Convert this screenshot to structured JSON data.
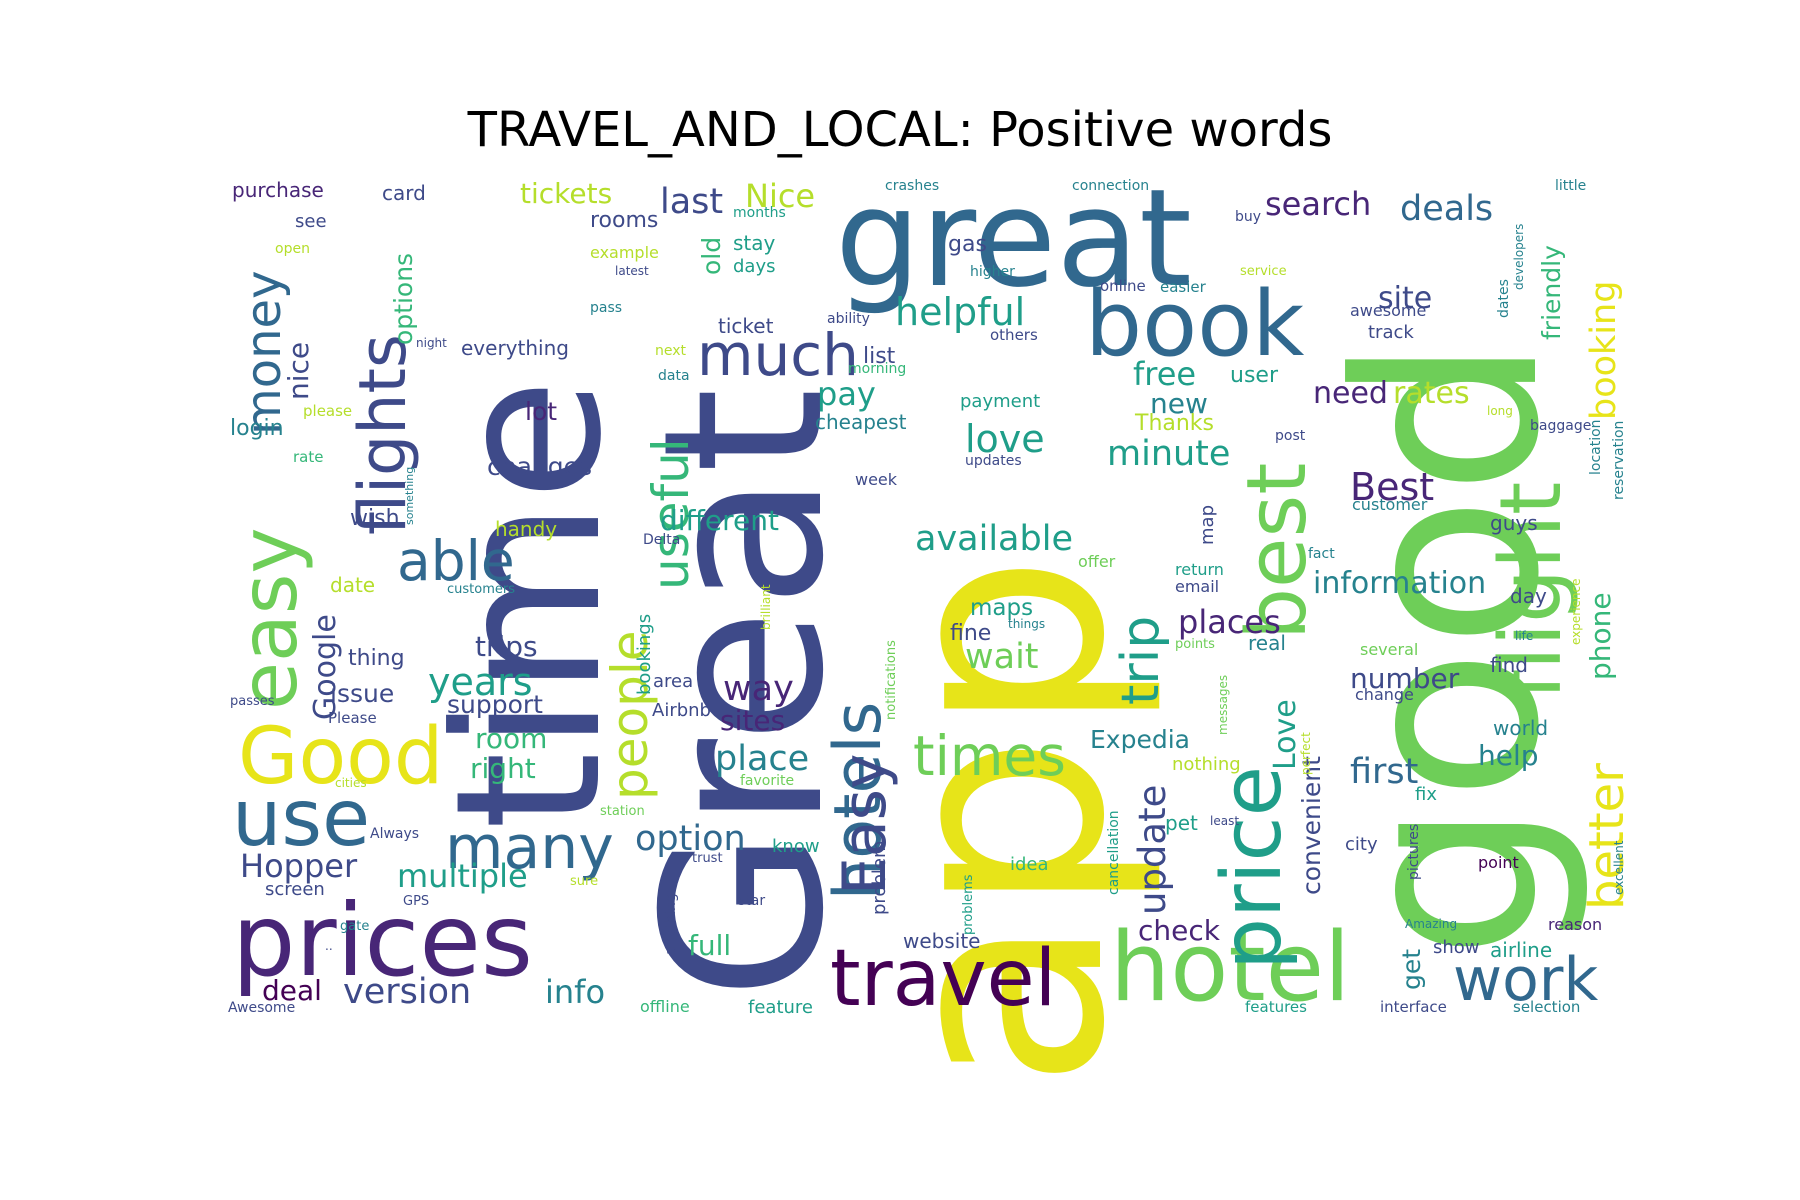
{
  "title": "TRAVEL_AND_LOCAL: Positive words",
  "palette": {
    "dark_purple": "#440154",
    "purple": "#482677",
    "indigo": "#3e4a89",
    "blue": "#31688e",
    "teal": "#26828e",
    "green_teal": "#1f9e89",
    "green": "#35b779",
    "light_green": "#6ece58",
    "lime": "#b5de2b",
    "yellow": "#e7e419"
  },
  "words": [
    {
      "text": "app",
      "color": "yellow"
    },
    {
      "text": "good",
      "color": "light_green"
    },
    {
      "text": "Great",
      "color": "indigo"
    },
    {
      "text": "time",
      "color": "indigo"
    },
    {
      "text": "great",
      "color": "blue"
    },
    {
      "text": "hotel",
      "color": "light_green"
    },
    {
      "text": "book",
      "color": "blue"
    },
    {
      "text": "flight",
      "color": "light_green"
    },
    {
      "text": "price",
      "color": "green_teal"
    },
    {
      "text": "best",
      "color": "light_green"
    },
    {
      "text": "prices",
      "color": "purple"
    },
    {
      "text": "travel",
      "color": "dark_purple"
    },
    {
      "text": "hotels",
      "color": "blue"
    },
    {
      "text": "easy",
      "color": "light_green"
    },
    {
      "text": "flights",
      "color": "indigo"
    },
    {
      "text": "Good",
      "color": "yellow"
    },
    {
      "text": "use",
      "color": "blue"
    },
    {
      "text": "useful",
      "color": "green"
    },
    {
      "text": "people",
      "color": "lime"
    },
    {
      "text": "Easy",
      "color": "indigo"
    },
    {
      "text": "much",
      "color": "indigo"
    },
    {
      "text": "many",
      "color": "blue"
    },
    {
      "text": "work",
      "color": "blue"
    },
    {
      "text": "times",
      "color": "light_green"
    },
    {
      "text": "able",
      "color": "blue"
    },
    {
      "text": "money",
      "color": "blue"
    },
    {
      "text": "trip",
      "color": "green_teal"
    },
    {
      "text": "better",
      "color": "yellow"
    },
    {
      "text": "booking",
      "color": "yellow"
    },
    {
      "text": "update",
      "color": "indigo"
    },
    {
      "text": "Best",
      "color": "purple"
    },
    {
      "text": "helpful",
      "color": "green_teal"
    },
    {
      "text": "love",
      "color": "green_teal"
    },
    {
      "text": "Love",
      "color": "green_teal"
    },
    {
      "text": "available",
      "color": "green_teal"
    },
    {
      "text": "deals",
      "color": "blue"
    },
    {
      "text": "search",
      "color": "purple"
    },
    {
      "text": "wait",
      "color": "light_green"
    },
    {
      "text": "years",
      "color": "green_teal"
    },
    {
      "text": "option",
      "color": "blue"
    },
    {
      "text": "place",
      "color": "teal"
    },
    {
      "text": "way",
      "color": "purple"
    },
    {
      "text": "information",
      "color": "teal"
    },
    {
      "text": "first",
      "color": "blue"
    },
    {
      "text": "version",
      "color": "indigo"
    },
    {
      "text": "Hopper",
      "color": "indigo"
    },
    {
      "text": "multiple",
      "color": "green_teal"
    },
    {
      "text": "minute",
      "color": "green_teal"
    },
    {
      "text": "last",
      "color": "indigo"
    },
    {
      "text": "Nice",
      "color": "lime"
    },
    {
      "text": "tickets",
      "color": "lime"
    },
    {
      "text": "different",
      "color": "green_teal"
    },
    {
      "text": "free",
      "color": "green_teal"
    },
    {
      "text": "pay",
      "color": "green_teal"
    },
    {
      "text": "Google",
      "color": "indigo"
    },
    {
      "text": "nice",
      "color": "indigo"
    },
    {
      "text": "options",
      "color": "green"
    },
    {
      "text": "info",
      "color": "teal"
    },
    {
      "text": "check",
      "color": "purple"
    },
    {
      "text": "convenient",
      "color": "indigo"
    },
    {
      "text": "phone",
      "color": "green"
    },
    {
      "text": "friendly",
      "color": "green"
    },
    {
      "text": "need",
      "color": "purple"
    },
    {
      "text": "rates",
      "color": "lime"
    },
    {
      "text": "site",
      "color": "indigo"
    },
    {
      "text": "places",
      "color": "purple"
    },
    {
      "text": "number",
      "color": "indigo"
    },
    {
      "text": "deal",
      "color": "dark_purple"
    },
    {
      "text": "full",
      "color": "green"
    },
    {
      "text": "new",
      "color": "teal"
    },
    {
      "text": "trips",
      "color": "indigo"
    },
    {
      "text": "room",
      "color": "green"
    },
    {
      "text": "right",
      "color": "green"
    },
    {
      "text": "help",
      "color": "teal"
    },
    {
      "text": "Expedia",
      "color": "teal"
    },
    {
      "text": "sites",
      "color": "purple"
    },
    {
      "text": "changes",
      "color": "indigo"
    },
    {
      "text": "lot",
      "color": "purple"
    },
    {
      "text": "issue",
      "color": "indigo"
    },
    {
      "text": "support",
      "color": "indigo"
    },
    {
      "text": "thing",
      "color": "indigo"
    },
    {
      "text": "wish",
      "color": "indigo"
    },
    {
      "text": "login",
      "color": "teal"
    },
    {
      "text": "get",
      "color": "teal"
    },
    {
      "text": "maps",
      "color": "green_teal"
    },
    {
      "text": "fine",
      "color": "indigo"
    },
    {
      "text": "gas",
      "color": "indigo"
    },
    {
      "text": "list",
      "color": "indigo"
    },
    {
      "text": "cheapest",
      "color": "teal"
    },
    {
      "text": "Thanks",
      "color": "lime"
    },
    {
      "text": "user",
      "color": "green_teal"
    },
    {
      "text": "rooms",
      "color": "indigo"
    },
    {
      "text": "old",
      "color": "green"
    },
    {
      "text": "stay",
      "color": "green_teal"
    },
    {
      "text": "days",
      "color": "green_teal"
    },
    {
      "text": "ticket",
      "color": "indigo"
    },
    {
      "text": "everything",
      "color": "indigo"
    },
    {
      "text": "handy",
      "color": "lime"
    },
    {
      "text": "date",
      "color": "lime"
    },
    {
      "text": "card",
      "color": "indigo"
    },
    {
      "text": "purchase",
      "color": "purple"
    },
    {
      "text": "see",
      "color": "indigo"
    },
    {
      "text": "screen",
      "color": "indigo"
    },
    {
      "text": "website",
      "color": "indigo"
    },
    {
      "text": "day",
      "color": "indigo"
    },
    {
      "text": "world",
      "color": "teal"
    },
    {
      "text": "find",
      "color": "indigo"
    },
    {
      "text": "guys",
      "color": "indigo"
    },
    {
      "text": "real",
      "color": "teal"
    },
    {
      "text": "airline",
      "color": "green_teal"
    },
    {
      "text": "show",
      "color": "indigo"
    },
    {
      "text": "reason",
      "color": "purple"
    },
    {
      "text": "offline",
      "color": "green"
    },
    {
      "text": "feature",
      "color": "green_teal"
    },
    {
      "text": "Awesome",
      "color": "indigo"
    },
    {
      "text": "features",
      "color": "green_teal"
    },
    {
      "text": "interface",
      "color": "indigo"
    },
    {
      "text": "selection",
      "color": "teal"
    },
    {
      "text": "bookings",
      "color": "green_teal"
    },
    {
      "text": "Airbnb",
      "color": "indigo"
    },
    {
      "text": "area",
      "color": "indigo"
    },
    {
      "text": "problem",
      "color": "indigo"
    },
    {
      "text": "know",
      "color": "green_teal"
    },
    {
      "text": "idea",
      "color": "green"
    },
    {
      "text": "customer",
      "color": "teal"
    },
    {
      "text": "awesome",
      "color": "indigo"
    },
    {
      "text": "track",
      "color": "indigo"
    },
    {
      "text": "map",
      "color": "indigo"
    },
    {
      "text": "email",
      "color": "indigo"
    },
    {
      "text": "return",
      "color": "green_teal"
    },
    {
      "text": "offer",
      "color": "light_green"
    },
    {
      "text": "fix",
      "color": "green_teal"
    },
    {
      "text": "pet",
      "color": "green_teal"
    },
    {
      "text": "city",
      "color": "indigo"
    },
    {
      "text": "point",
      "color": "dark_purple"
    },
    {
      "text": "change",
      "color": "indigo"
    },
    {
      "text": "several",
      "color": "light_green"
    },
    {
      "text": "nothing",
      "color": "lime"
    },
    {
      "text": "Delta",
      "color": "indigo"
    },
    {
      "text": "payment",
      "color": "green_teal"
    },
    {
      "text": "updates",
      "color": "indigo"
    },
    {
      "text": "week",
      "color": "indigo"
    },
    {
      "text": "morning",
      "color": "green"
    },
    {
      "text": "ability",
      "color": "indigo"
    },
    {
      "text": "next",
      "color": "lime"
    },
    {
      "text": "data",
      "color": "teal"
    },
    {
      "text": "example",
      "color": "lime"
    },
    {
      "text": "latest",
      "color": "indigo"
    },
    {
      "text": "pass",
      "color": "teal"
    },
    {
      "text": "months",
      "color": "green_teal"
    },
    {
      "text": "crashes",
      "color": "teal"
    },
    {
      "text": "connection",
      "color": "teal"
    },
    {
      "text": "little",
      "color": "teal"
    },
    {
      "text": "buy",
      "color": "indigo"
    },
    {
      "text": "developers",
      "color": "teal"
    },
    {
      "text": "service",
      "color": "lime"
    },
    {
      "text": "online",
      "color": "indigo"
    },
    {
      "text": "easier",
      "color": "teal"
    },
    {
      "text": "higher",
      "color": "teal"
    },
    {
      "text": "others",
      "color": "indigo"
    },
    {
      "text": "dates",
      "color": "teal"
    },
    {
      "text": "baggage",
      "color": "indigo"
    },
    {
      "text": "location",
      "color": "teal"
    },
    {
      "text": "reservation",
      "color": "teal"
    },
    {
      "text": "post",
      "color": "indigo"
    },
    {
      "text": "long",
      "color": "lime"
    },
    {
      "text": "fact",
      "color": "teal"
    },
    {
      "text": "life",
      "color": "teal"
    },
    {
      "text": "experience",
      "color": "lime"
    },
    {
      "text": "excellent",
      "color": "teal"
    },
    {
      "text": "Amazing",
      "color": "teal"
    },
    {
      "text": "pictures",
      "color": "indigo"
    },
    {
      "text": "least",
      "color": "indigo"
    },
    {
      "text": "cancellation",
      "color": "green_teal"
    },
    {
      "text": "perfect",
      "color": "lime"
    },
    {
      "text": "messages",
      "color": "light_green"
    },
    {
      "text": "points",
      "color": "light_green"
    },
    {
      "text": "things",
      "color": "teal"
    },
    {
      "text": "problems",
      "color": "green_teal"
    },
    {
      "text": "star",
      "color": "indigo"
    },
    {
      "text": "trust",
      "color": "indigo"
    },
    {
      "text": "sure",
      "color": "lime"
    },
    {
      "text": "anything",
      "color": "indigo"
    },
    {
      "text": "station",
      "color": "light_green"
    },
    {
      "text": "favorite",
      "color": "light_green"
    },
    {
      "text": "brilliant",
      "color": "lime"
    },
    {
      "text": "notifications",
      "color": "light_green"
    },
    {
      "text": "customers",
      "color": "teal"
    },
    {
      "text": "passes",
      "color": "indigo"
    },
    {
      "text": "Please",
      "color": "indigo"
    },
    {
      "text": "cities",
      "color": "lime"
    },
    {
      "text": "Always",
      "color": "indigo"
    },
    {
      "text": "GPS",
      "color": "indigo"
    },
    {
      "text": "gate",
      "color": "teal"
    },
    {
      "text": "..",
      "color": "indigo"
    },
    {
      "text": "something",
      "color": "teal"
    },
    {
      "text": "rate",
      "color": "green"
    },
    {
      "text": "please",
      "color": "lime"
    },
    {
      "text": "night",
      "color": "indigo"
    },
    {
      "text": "open",
      "color": "lime"
    }
  ]
}
